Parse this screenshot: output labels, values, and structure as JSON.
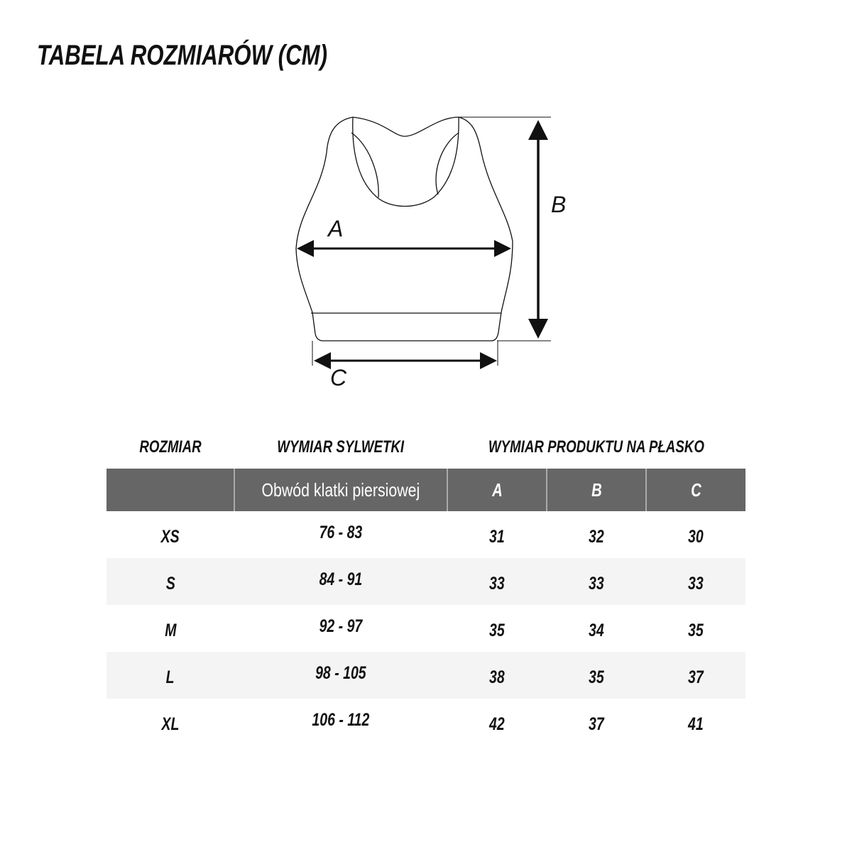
{
  "title": "TABELA ROZMIARÓW (CM)",
  "diagram": {
    "labels": {
      "a": "A",
      "b": "B",
      "c": "C"
    }
  },
  "table": {
    "top_headers": {
      "size": "ROZMIAR",
      "body": "WYMIAR SYLWETKI",
      "product": "WYMIAR PRODUKTU NA PŁASKO"
    },
    "sub_headers": {
      "size": "",
      "chest": "Obwód klatki piersiowej",
      "a": "A",
      "b": "B",
      "c": "C"
    },
    "rows": [
      {
        "size": "XS",
        "chest": "76 - 83",
        "a": "31",
        "b": "32",
        "c": "30"
      },
      {
        "size": "S",
        "chest": "84 - 91",
        "a": "33",
        "b": "33",
        "c": "33"
      },
      {
        "size": "M",
        "chest": "92 - 97",
        "a": "35",
        "b": "34",
        "c": "35"
      },
      {
        "size": "L",
        "chest": "98 - 105",
        "a": "38",
        "b": "35",
        "c": "37"
      },
      {
        "size": "XL",
        "chest": "106 - 112",
        "a": "42",
        "b": "37",
        "c": "41"
      }
    ],
    "colors": {
      "header_bg": "#666666",
      "stripe_bg": "#f4f4f4"
    }
  }
}
